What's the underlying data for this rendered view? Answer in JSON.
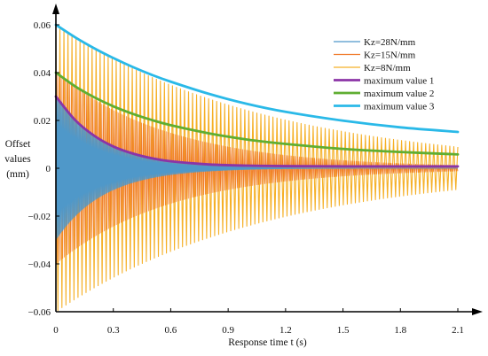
{
  "chart_data": {
    "type": "line",
    "xlabel": "Response time t (s)",
    "ylabel_lines": [
      "Offset",
      "values",
      "(mm)"
    ],
    "xlim": [
      0,
      2.1
    ],
    "ylim": [
      -0.06,
      0.06
    ],
    "x_ticks": [
      0,
      0.3,
      0.6,
      0.9,
      1.2,
      1.5,
      1.8,
      2.1
    ],
    "x_tick_labels": [
      "0",
      "0.3",
      "0.6",
      "0.9",
      "1.2",
      "1.5",
      "1.8",
      "2.1"
    ],
    "y_ticks": [
      0.06,
      0.04,
      0.02,
      0,
      -0.02,
      -0.04,
      -0.06
    ],
    "y_tick_labels": [
      "0.06",
      "0.04",
      "0.02",
      "0",
      "−0.02",
      "−0.04",
      "−0.06"
    ],
    "grid": false,
    "legend_position": "top-right",
    "series": [
      {
        "name": "Kz=28N/mm",
        "kind": "damped_oscillation",
        "color": "#4f98c9",
        "stroke_width": 0.7,
        "initial_amplitude": 0.03,
        "decay_time_constant": 0.25,
        "oscillation_period": 0.004,
        "drawn_until": 2.1
      },
      {
        "name": "Kz=15N/mm",
        "kind": "damped_oscillation",
        "color": "#f07a2a",
        "stroke_width": 0.7,
        "initial_amplitude": 0.04,
        "decay_time_constant": 0.6,
        "oscillation_period": 0.008,
        "drawn_until": 2.1
      },
      {
        "name": "Kz=8N/mm",
        "kind": "damped_oscillation",
        "color": "#f5b027",
        "stroke_width": 1.1,
        "initial_amplitude": 0.06,
        "decay_time_constant": 1.1,
        "oscillation_period": 0.021,
        "drawn_until": 2.1
      },
      {
        "name": "maximum value 1",
        "kind": "envelope",
        "color": "#8b34a7",
        "stroke_width": 2.8,
        "x": [
          0,
          0.1,
          0.2,
          0.3,
          0.4,
          0.5,
          0.6,
          0.8,
          1.0,
          1.2,
          1.5,
          1.8,
          2.1
        ],
        "values": [
          0.03,
          0.0202,
          0.0136,
          0.0091,
          0.0062,
          0.0042,
          0.0029,
          0.0016,
          0.0011,
          0.0009,
          0.0008,
          0.0008,
          0.0008
        ]
      },
      {
        "name": "maximum value 2",
        "kind": "envelope",
        "color": "#5fae32",
        "stroke_width": 2.8,
        "x": [
          0,
          0.1,
          0.2,
          0.3,
          0.4,
          0.5,
          0.6,
          0.8,
          1.0,
          1.2,
          1.5,
          1.8,
          2.1
        ],
        "values": [
          0.04,
          0.0343,
          0.0297,
          0.0259,
          0.0228,
          0.0202,
          0.018,
          0.0146,
          0.012,
          0.0102,
          0.0081,
          0.0068,
          0.0058
        ]
      },
      {
        "name": "maximum value 3",
        "kind": "envelope",
        "color": "#2ab9e8",
        "stroke_width": 2.8,
        "x": [
          0,
          0.1,
          0.2,
          0.3,
          0.4,
          0.5,
          0.6,
          0.8,
          1.0,
          1.2,
          1.5,
          1.8,
          2.1
        ],
        "values": [
          0.06,
          0.0548,
          0.0502,
          0.0461,
          0.0424,
          0.0391,
          0.0362,
          0.0311,
          0.0269,
          0.0236,
          0.0199,
          0.0171,
          0.0152
        ]
      }
    ]
  }
}
